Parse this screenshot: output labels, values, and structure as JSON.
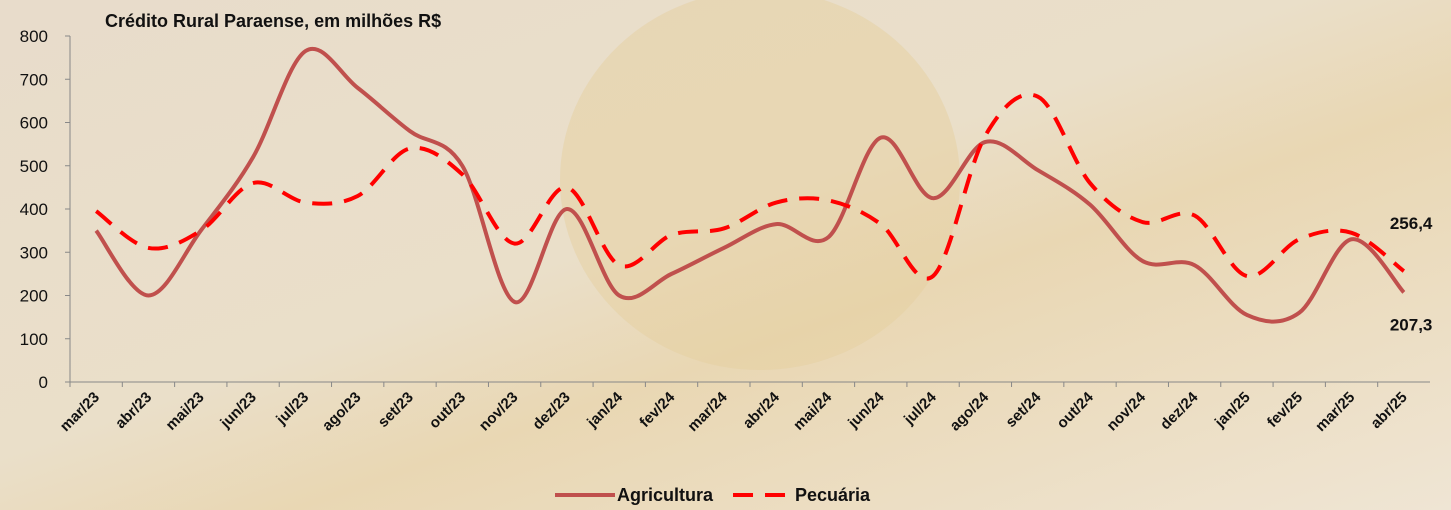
{
  "chart_data": {
    "type": "line",
    "title": "Crédito Rural Paraense, em milhões R$",
    "categories": [
      "mar/23",
      "abr/23",
      "mai/23",
      "jun/23",
      "jul/23",
      "ago/23",
      "set/23",
      "out/23",
      "nov/23",
      "dez/23",
      "jan/24",
      "fev/24",
      "mar/24",
      "abr/24",
      "mai/24",
      "jun/24",
      "jul/24",
      "ago/24",
      "set/24",
      "out/24",
      "nov/24",
      "dez/24",
      "jan/25",
      "fev/25",
      "mar/25",
      "abr/25"
    ],
    "series": [
      {
        "name": "Agricultura",
        "color": "#c0504d",
        "dash": false,
        "values": [
          350,
          200,
          350,
          520,
          765,
          680,
          580,
          500,
          185,
          400,
          200,
          250,
          310,
          365,
          335,
          565,
          425,
          555,
          490,
          410,
          280,
          270,
          155,
          160,
          330,
          207.3
        ],
        "value_labels": [
          null,
          null,
          null,
          null,
          null,
          null,
          null,
          null,
          null,
          null,
          null,
          null,
          null,
          null,
          null,
          null,
          null,
          null,
          null,
          null,
          null,
          null,
          null,
          null,
          null,
          "207,3"
        ]
      },
      {
        "name": "Pecuária",
        "color": "#ff0000",
        "dash": true,
        "values": [
          395,
          310,
          350,
          460,
          415,
          430,
          540,
          480,
          320,
          450,
          270,
          340,
          355,
          415,
          420,
          365,
          245,
          570,
          660,
          460,
          370,
          385,
          245,
          330,
          345,
          256.4
        ],
        "value_labels": [
          null,
          null,
          null,
          null,
          null,
          null,
          null,
          null,
          null,
          null,
          null,
          null,
          null,
          null,
          null,
          null,
          null,
          null,
          null,
          null,
          null,
          null,
          null,
          null,
          null,
          "256,4"
        ]
      }
    ],
    "ylim": [
      0,
      800
    ],
    "yticks": [
      0,
      100,
      200,
      300,
      400,
      500,
      600,
      700,
      800
    ]
  }
}
